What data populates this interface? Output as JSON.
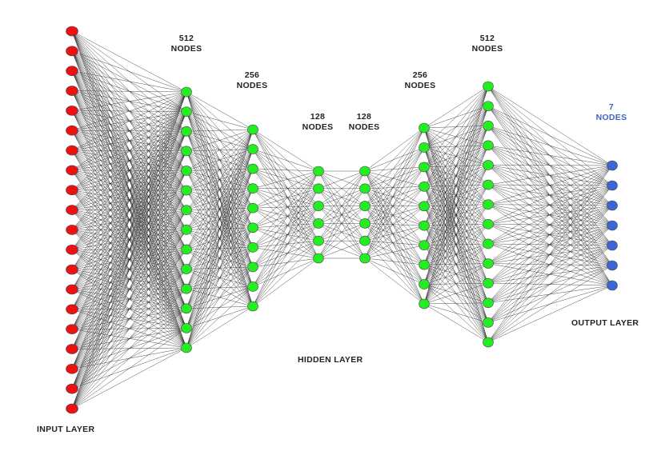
{
  "colors": {
    "input_node": "#ee1111",
    "hidden_node": "#22ee22",
    "output_node": "#3a66d8",
    "node_outline": "#444444",
    "edge": "#1a1a1a",
    "label_text": "#222222",
    "output_label_text": "#3a66c8"
  },
  "layers": [
    {
      "id": "input",
      "role": "input",
      "node_count": 20
    },
    {
      "id": "hidden-1",
      "role": "hidden",
      "node_count": 14,
      "count_label": "512",
      "unit_label": "NODES"
    },
    {
      "id": "hidden-2",
      "role": "hidden",
      "node_count": 10,
      "count_label": "256",
      "unit_label": "NODES"
    },
    {
      "id": "hidden-3",
      "role": "hidden",
      "node_count": 6,
      "count_label": "128",
      "unit_label": "NODES"
    },
    {
      "id": "hidden-4",
      "role": "hidden",
      "node_count": 6,
      "count_label": "128",
      "unit_label": "NODES"
    },
    {
      "id": "hidden-5",
      "role": "hidden",
      "node_count": 10,
      "count_label": "256",
      "unit_label": "NODES"
    },
    {
      "id": "hidden-6",
      "role": "hidden",
      "node_count": 14,
      "count_label": "512",
      "unit_label": "NODES"
    },
    {
      "id": "output",
      "role": "output",
      "node_count": 7,
      "count_label": "7",
      "unit_label": "NODES"
    }
  ],
  "captions": {
    "input_layer": "INPUT LAYER",
    "hidden_layer": "HIDDEN LAYER",
    "output_layer": "OUTPUT LAYER"
  }
}
